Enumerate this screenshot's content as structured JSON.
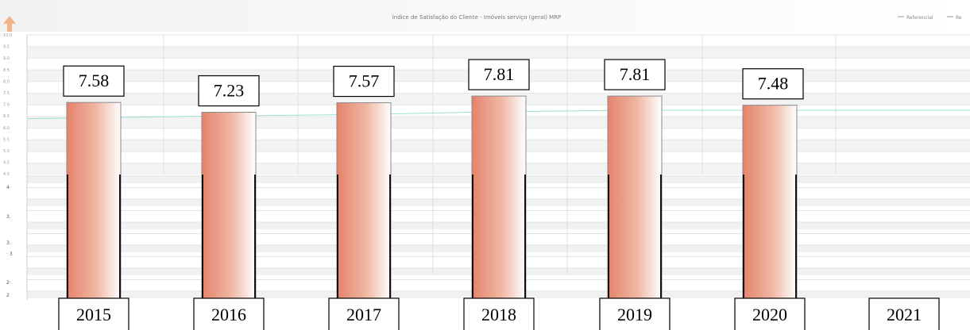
{
  "chart_data": {
    "type": "bar",
    "title": "Índice de Satisfação do Cliente - Imóveis serviço (geral) MRP",
    "legend": {
      "placement": "top-right",
      "items": [
        "Referencial",
        "Re"
      ]
    },
    "categories": [
      "2015",
      "2016",
      "2017",
      "2018",
      "2019",
      "2020",
      "2021"
    ],
    "series": [
      {
        "values": [
          7.58,
          7.23,
          7.57,
          7.81,
          7.81,
          7.48,
          null
        ]
      }
    ],
    "data_labels": [
      "7.58",
      "7.23",
      "7.57",
      "7.81",
      "7.81",
      "7.48"
    ],
    "reference_line": {
      "values": [
        7.0,
        7.1,
        7.15,
        7.25,
        7.3,
        7.3,
        7.3
      ]
    },
    "upper_axis": {
      "ylim": [
        4.0,
        10.0
      ],
      "tick_labels": [
        "10.0",
        "9.5",
        "9.0",
        "8.5",
        "8.0",
        "7.5",
        "7.0",
        "6.5",
        "6.0",
        "5.5",
        "5.0",
        "4.5",
        "4.0"
      ]
    },
    "lower_axis_tick_labels": [
      "4·",
      "3.",
      "3.",
      "· 3",
      "2·",
      "2"
    ],
    "grid": true,
    "bar_fill": {
      "dark": "#e4836a",
      "light": "#ffffff"
    },
    "reference_color": "#9fe0cc"
  }
}
